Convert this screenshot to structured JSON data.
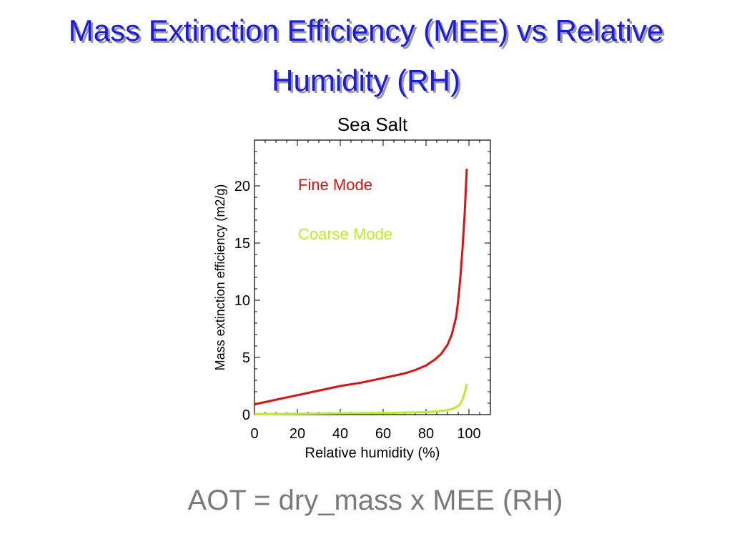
{
  "slide": {
    "title": "Mass Extinction Efficiency (MEE) vs Relative Humidity (RH)",
    "formula": "AOT = dry_mass x MEE (RH)"
  },
  "colors": {
    "title": "#1a1ae0",
    "fine_mode": "#e01010",
    "coarse_mode": "#b8f020",
    "axes": "#000000",
    "formula": "#7a7a7a"
  },
  "chart_data": {
    "type": "line",
    "title": "Sea Salt",
    "xlabel": "Relative humidity (%)",
    "ylabel": "Mass extinction efficiency (m2/g)",
    "xlim": [
      0,
      110
    ],
    "ylim": [
      0,
      24
    ],
    "xticks": [
      0,
      20,
      40,
      60,
      80,
      100
    ],
    "yticks": [
      0,
      5,
      10,
      15,
      20
    ],
    "grid": false,
    "legend": "top-left (inside plot, colored text labels)",
    "series": [
      {
        "name": "Fine Mode",
        "color": "#e01010",
        "x": [
          0,
          10,
          20,
          30,
          40,
          50,
          60,
          70,
          75,
          80,
          84,
          87,
          90,
          92,
          94,
          95,
          96,
          97,
          98,
          99
        ],
        "y": [
          0.9,
          1.3,
          1.7,
          2.1,
          2.5,
          2.8,
          3.2,
          3.6,
          3.9,
          4.3,
          4.8,
          5.3,
          6.1,
          7.0,
          8.5,
          10.0,
          12.0,
          14.5,
          17.5,
          21.5
        ]
      },
      {
        "name": "Coarse Mode",
        "color": "#b8f020",
        "x": [
          0,
          20,
          40,
          60,
          70,
          80,
          85,
          90,
          93,
          95,
          96,
          97,
          98,
          99
        ],
        "y": [
          0.05,
          0.08,
          0.12,
          0.15,
          0.18,
          0.22,
          0.28,
          0.4,
          0.55,
          0.75,
          0.95,
          1.3,
          1.9,
          2.7
        ]
      }
    ]
  }
}
